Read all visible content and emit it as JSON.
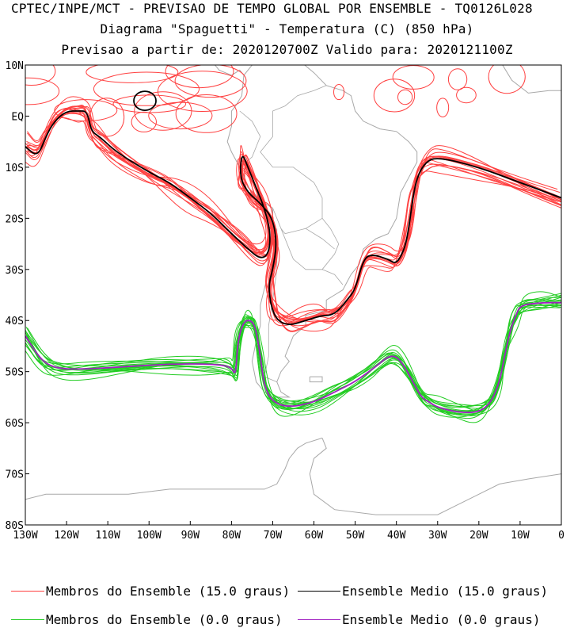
{
  "title": {
    "line1": "CPTEC/INPE/MCT - PREVISAO DE TEMPO GLOBAL POR ENSEMBLE - TQ0126L028",
    "line2": "Diagrama \"Spaguetti\" - Temperatura (C) (850 hPa)",
    "line3": "Previsao a partir de: 2020120700Z  Valido para: 2020121100Z"
  },
  "axes": {
    "lat_labels": [
      "10N",
      "EQ",
      "10S",
      "20S",
      "30S",
      "40S",
      "50S",
      "60S",
      "70S",
      "80S"
    ],
    "lon_labels": [
      "130W",
      "120W",
      "110W",
      "100W",
      "90W",
      "80W",
      "70W",
      "60W",
      "50W",
      "40W",
      "30W",
      "20W",
      "10W",
      "0"
    ],
    "lon_range": [
      -130,
      0
    ],
    "lat_range": [
      -80,
      10
    ]
  },
  "legend": {
    "member15": "Membros do Ensemble (15.0 graus)",
    "mean15": "Ensemble Medio (15.0 graus)",
    "member0": "Membros do Ensemble (0.0 graus)",
    "mean0": "Ensemble Medio (0.0 graus)"
  },
  "colors": {
    "member15": "#ff4040",
    "mean15": "#000000",
    "member0": "#22cc22",
    "mean0": "#a020c0",
    "coast": "#a8a8a8"
  },
  "chart_data": {
    "type": "line",
    "series": [
      {
        "name": "Ensemble Medio (15.0 graus)",
        "x": [
          -130,
          -127,
          -125,
          -123,
          -120,
          -117,
          -115,
          -114,
          -112,
          -108,
          -100,
          -95,
          -90,
          -85,
          -80,
          -76,
          -73,
          -71,
          -70.5,
          -72,
          -74,
          -76,
          -77.5,
          -78,
          -76,
          -73,
          -70,
          -69,
          -70,
          -71,
          -70.5,
          -69,
          -66,
          -62,
          -58,
          -56,
          -54,
          -52,
          -50,
          -48,
          -46,
          -42,
          -40,
          -38,
          -37,
          -36,
          -35,
          -33,
          -30,
          -20,
          -10,
          0
        ],
        "y": [
          -6,
          -8,
          -4,
          -1,
          1,
          1,
          1,
          -3,
          -4,
          -7,
          -11,
          -13,
          -16,
          -19,
          -23,
          -26,
          -28,
          -27,
          -23,
          -18,
          -14,
          -10,
          -7,
          -12,
          -15,
          -17,
          -20,
          -25,
          -30,
          -33,
          -37,
          -40,
          -41,
          -40,
          -39,
          -39,
          -38,
          -36,
          -34,
          -28,
          -27,
          -28,
          -29,
          -26,
          -22,
          -16,
          -12,
          -9,
          -8,
          -10,
          -13,
          -16
        ]
      },
      {
        "name": "Ensemble Medio (0.0 graus)",
        "x": [
          -130,
          -126,
          -122,
          -115,
          -105,
          -95,
          -85,
          -80,
          -79,
          -78.5,
          -77,
          -75,
          -74,
          -73,
          -72,
          -70,
          -66,
          -60,
          -55,
          -50,
          -45,
          -42,
          -40,
          -38,
          -36,
          -34,
          -32,
          -30,
          -25,
          -20,
          -17,
          -15,
          -14,
          -13,
          -12,
          -11,
          -10,
          -5,
          0
        ],
        "y": [
          -43,
          -48,
          -49.5,
          -49.5,
          -49,
          -48.5,
          -48.5,
          -49,
          -51,
          -44,
          -40,
          -40,
          -42,
          -47,
          -53,
          -56,
          -57,
          -56,
          -54,
          -52,
          -49,
          -47,
          -47,
          -49,
          -52,
          -55,
          -56,
          -57,
          -58,
          -58,
          -56,
          -52,
          -48,
          -44,
          -41,
          -39,
          -37,
          -36.5,
          -36.5
        ]
      }
    ]
  }
}
